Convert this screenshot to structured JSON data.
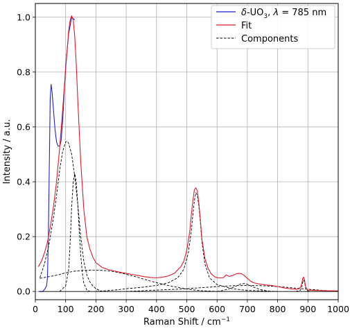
{
  "chart_data": {
    "type": "line",
    "xlabel": "Raman Shift / cm",
    "xlabel_sup": "−1",
    "ylabel": "Intensity / a.u.",
    "xlim": [
      0,
      1000
    ],
    "ylim": [
      -0.03,
      1.05
    ],
    "xticks": [
      0,
      100,
      200,
      300,
      400,
      500,
      600,
      700,
      800,
      900,
      1000
    ],
    "yticks": [
      0.0,
      0.2,
      0.4,
      0.6,
      0.8,
      1.0
    ],
    "ytick_labels": [
      "0.0",
      "0.2",
      "0.4",
      "0.6",
      "0.8",
      "1.0"
    ],
    "grid": true,
    "legend_position": "top-right",
    "legend": {
      "data_prefix": "δ",
      "data_mid": "-UO",
      "data_sub": "3",
      "data_suffix": ", ",
      "data_lambda": "λ",
      "data_tail": " = 785 nm",
      "fit": "Fit",
      "components": "Components"
    },
    "colors": {
      "data": "#1f1fd6",
      "fit": "#e0192b",
      "components": "#000000"
    },
    "series": [
      {
        "role": "data",
        "style": "solid",
        "x": [
          10,
          25,
          32,
          37,
          40,
          43,
          46,
          49,
          52,
          55,
          60,
          65,
          70,
          75,
          80,
          82,
          85,
          90,
          95,
          100,
          110,
          120,
          130
        ],
        "y": [
          0.0,
          0.0,
          0.01,
          0.02,
          0.05,
          0.2,
          0.45,
          0.7,
          0.755,
          0.73,
          0.66,
          0.59,
          0.545,
          0.53,
          0.53,
          0.535,
          0.55,
          0.62,
          0.72,
          0.82,
          0.94,
          1.0,
          0.99
        ]
      },
      {
        "role": "fit",
        "style": "solid",
        "x": [
          10,
          20,
          30,
          40,
          50,
          60,
          70,
          80,
          90,
          100,
          110,
          115,
          120,
          125,
          130,
          135,
          140,
          150,
          160,
          170,
          180,
          190,
          200,
          220,
          240,
          260,
          280,
          300,
          320,
          340,
          360,
          380,
          400,
          420,
          440,
          460,
          480,
          490,
          500,
          510,
          515,
          520,
          525,
          530,
          535,
          540,
          545,
          550,
          560,
          570,
          580,
          590,
          600,
          620,
          630,
          640,
          650,
          660,
          670,
          680,
          690,
          700,
          710,
          720,
          740,
          760,
          780,
          800,
          820,
          840,
          860,
          870,
          875,
          880,
          883,
          886,
          889,
          892,
          896,
          900,
          920,
          950,
          1000
        ],
        "y": [
          0.09,
          0.11,
          0.14,
          0.18,
          0.24,
          0.31,
          0.4,
          0.52,
          0.66,
          0.81,
          0.95,
          0.99,
          1.005,
          0.99,
          0.93,
          0.83,
          0.7,
          0.47,
          0.3,
          0.2,
          0.155,
          0.125,
          0.105,
          0.088,
          0.08,
          0.075,
          0.07,
          0.066,
          0.062,
          0.058,
          0.054,
          0.051,
          0.05,
          0.052,
          0.057,
          0.067,
          0.09,
          0.11,
          0.15,
          0.22,
          0.28,
          0.33,
          0.37,
          0.378,
          0.365,
          0.32,
          0.26,
          0.19,
          0.12,
          0.085,
          0.065,
          0.055,
          0.05,
          0.05,
          0.06,
          0.055,
          0.058,
          0.063,
          0.066,
          0.065,
          0.058,
          0.048,
          0.038,
          0.032,
          0.027,
          0.024,
          0.022,
          0.018,
          0.013,
          0.01,
          0.008,
          0.009,
          0.015,
          0.03,
          0.048,
          0.052,
          0.04,
          0.02,
          0.008,
          0.005,
          0.004,
          0.003,
          0.002
        ]
      },
      {
        "role": "component",
        "style": "dashed",
        "x": [
          15,
          30,
          45,
          60,
          70,
          80,
          90,
          100,
          105,
          110,
          120,
          130,
          140,
          150,
          160,
          170,
          180,
          190,
          200,
          220
        ],
        "y": [
          0.05,
          0.1,
          0.17,
          0.27,
          0.35,
          0.44,
          0.51,
          0.545,
          0.548,
          0.54,
          0.5,
          0.42,
          0.32,
          0.2,
          0.11,
          0.06,
          0.035,
          0.02,
          0.01,
          0.0
        ]
      },
      {
        "role": "component",
        "style": "dashed",
        "x": [
          80,
          100,
          110,
          115,
          120,
          125,
          130,
          135,
          140,
          145,
          150,
          155,
          160,
          170,
          180
        ],
        "y": [
          0.0,
          0.02,
          0.08,
          0.18,
          0.31,
          0.4,
          0.43,
          0.4,
          0.32,
          0.22,
          0.13,
          0.07,
          0.03,
          0.005,
          0.0
        ]
      },
      {
        "role": "component",
        "style": "dashed",
        "x": [
          15,
          40,
          60,
          80,
          100,
          130,
          160,
          190,
          220,
          250,
          280,
          310,
          340,
          370,
          400,
          430,
          460,
          490,
          520,
          550,
          600
        ],
        "y": [
          0.048,
          0.053,
          0.057,
          0.062,
          0.068,
          0.074,
          0.077,
          0.078,
          0.077,
          0.074,
          0.068,
          0.06,
          0.051,
          0.041,
          0.032,
          0.024,
          0.017,
          0.011,
          0.006,
          0.003,
          0.0
        ]
      },
      {
        "role": "component",
        "style": "dashed",
        "x": [
          200,
          260,
          300,
          350,
          400,
          440,
          470,
          490,
          505,
          515,
          520,
          525,
          530,
          535,
          540,
          545,
          550,
          560,
          575,
          600,
          650,
          700,
          800
        ],
        "y": [
          0.0,
          0.005,
          0.01,
          0.015,
          0.022,
          0.032,
          0.05,
          0.08,
          0.14,
          0.22,
          0.28,
          0.33,
          0.36,
          0.35,
          0.31,
          0.25,
          0.18,
          0.1,
          0.05,
          0.025,
          0.01,
          0.004,
          0.0
        ]
      },
      {
        "role": "component",
        "style": "dashed",
        "x": [
          300,
          400,
          500,
          550,
          600,
          650,
          700,
          750,
          800,
          850,
          900,
          950,
          1000
        ],
        "y": [
          0.0,
          0.005,
          0.01,
          0.014,
          0.018,
          0.021,
          0.022,
          0.021,
          0.018,
          0.013,
          0.008,
          0.004,
          0.001
        ]
      },
      {
        "role": "component",
        "style": "dashed",
        "x": [
          600,
          620,
          640,
          660,
          670,
          680,
          690,
          700,
          720,
          740,
          760,
          780
        ],
        "y": [
          0.0,
          0.004,
          0.01,
          0.018,
          0.024,
          0.028,
          0.029,
          0.026,
          0.016,
          0.008,
          0.003,
          0.0
        ]
      },
      {
        "role": "component",
        "style": "dashed",
        "x": [
          860,
          875,
          880,
          883,
          886,
          889,
          892,
          896,
          905
        ],
        "y": [
          0.0,
          0.005,
          0.018,
          0.034,
          0.042,
          0.034,
          0.015,
          0.004,
          0.0
        ]
      }
    ]
  }
}
